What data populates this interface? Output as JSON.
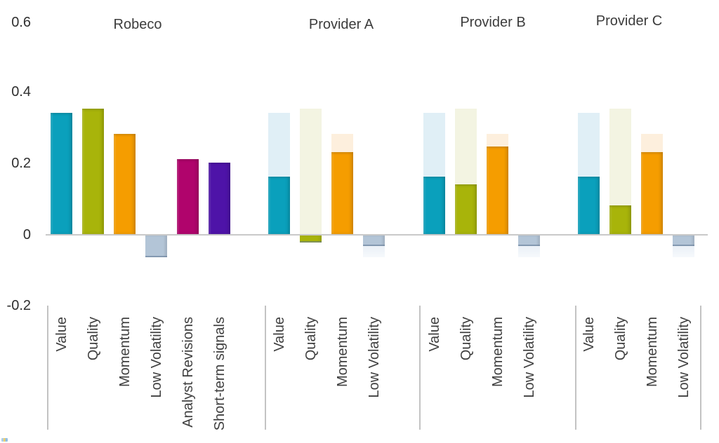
{
  "colors": {
    "value": "#0AA0BC",
    "quality": "#A8B40A",
    "momentum": "#F59D00",
    "low_volatility": "#B3C5D7",
    "analyst_revisions": "#B0046C",
    "short_term_signals": "#4E13A8",
    "value_ref": "#E0EFF6",
    "quality_ref": "#F3F4E2",
    "momentum_ref": "#FDEFDD",
    "low_volatility_ref": "#EDF1F7",
    "axis_line": "#C9C9C9",
    "separator": "#C3C3C3",
    "text": "#3A3A3A"
  },
  "chart_data": {
    "type": "bar",
    "title": "",
    "xlabel": "",
    "ylabel": "",
    "ylim": [
      -0.2,
      0.6
    ],
    "grid": false,
    "legend": false,
    "ytick_labels": [
      "0.6",
      "0.4",
      "0.2",
      "0",
      "-0.2"
    ],
    "yticks": [
      0.6,
      0.4,
      0.2,
      0,
      -0.2
    ],
    "note": "Provider bars show solid actual values over light reference bars equal to Robeco values",
    "groups": [
      {
        "name": "Robeco",
        "bars": [
          {
            "label": "Value",
            "series": "value",
            "value": 0.34
          },
          {
            "label": "Quality",
            "series": "quality",
            "value": 0.35
          },
          {
            "label": "Momentum",
            "series": "momentum",
            "value": 0.28
          },
          {
            "label": "Low Volatility",
            "series": "low_volatility",
            "value": -0.06
          },
          {
            "label": "Analyst Revisions",
            "series": "analyst_revisions",
            "value": 0.21
          },
          {
            "label": "Short-term signals",
            "series": "short_term_signals",
            "value": 0.2
          }
        ]
      },
      {
        "name": "Provider A",
        "bars": [
          {
            "label": "Value",
            "series": "value",
            "value": 0.16,
            "reference": 0.34
          },
          {
            "label": "Quality",
            "series": "quality",
            "value": -0.02,
            "reference": 0.35
          },
          {
            "label": "Momentum",
            "series": "momentum",
            "value": 0.23,
            "reference": 0.28
          },
          {
            "label": "Low Volatility",
            "series": "low_volatility",
            "value": -0.03,
            "reference": -0.06
          }
        ]
      },
      {
        "name": "Provider B",
        "bars": [
          {
            "label": "Value",
            "series": "value",
            "value": 0.16,
            "reference": 0.34
          },
          {
            "label": "Quality",
            "series": "quality",
            "value": 0.14,
            "reference": 0.35
          },
          {
            "label": "Momentum",
            "series": "momentum",
            "value": 0.245,
            "reference": 0.28
          },
          {
            "label": "Low Volatility",
            "series": "low_volatility",
            "value": -0.03,
            "reference": -0.06
          }
        ]
      },
      {
        "name": "Provider C",
        "bars": [
          {
            "label": "Value",
            "series": "value",
            "value": 0.16,
            "reference": 0.34
          },
          {
            "label": "Quality",
            "series": "quality",
            "value": 0.08,
            "reference": 0.35
          },
          {
            "label": "Momentum",
            "series": "momentum",
            "value": 0.23,
            "reference": 0.28
          },
          {
            "label": "Low Volatility",
            "series": "low_volatility",
            "value": -0.03,
            "reference": -0.06
          }
        ]
      }
    ]
  }
}
